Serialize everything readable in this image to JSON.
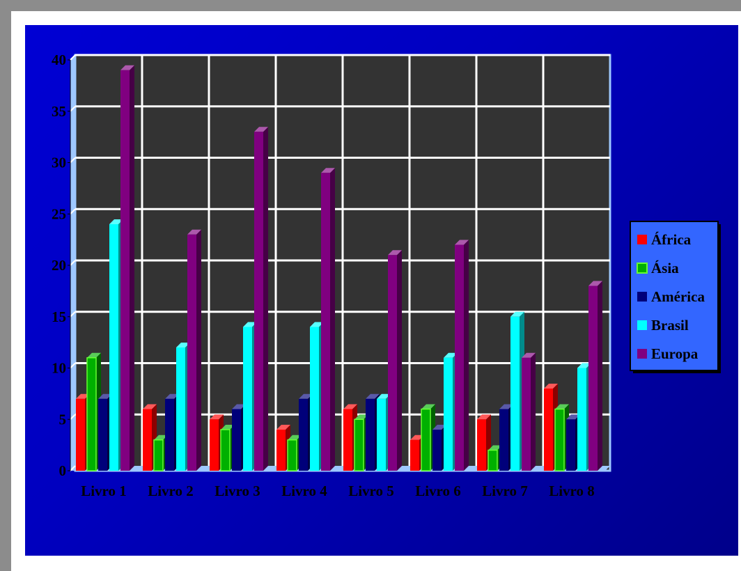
{
  "chart_data": {
    "type": "bar",
    "title": "",
    "xlabel": "",
    "ylabel": "",
    "ylim": [
      0,
      40
    ],
    "yticks": [
      0,
      5,
      10,
      15,
      20,
      25,
      30,
      35,
      40
    ],
    "grid": true,
    "legend_position": "right",
    "categories": [
      "Livro 1",
      "Livro 2",
      "Livro 3",
      "Livro 4",
      "Livro 5",
      "Livro 6",
      "Livro 7",
      "Livro 8"
    ],
    "series": [
      {
        "name": "África",
        "color": "#ff0000",
        "values": [
          7,
          6,
          5,
          4,
          6,
          3,
          5,
          8
        ]
      },
      {
        "name": "Ásia",
        "color": "#00b000",
        "values": [
          11,
          3,
          4,
          3,
          5,
          6,
          2,
          6
        ]
      },
      {
        "name": "América",
        "color": "#00007a",
        "values": [
          7,
          7,
          6,
          7,
          7,
          4,
          6,
          5
        ]
      },
      {
        "name": "Brasil",
        "color": "#00ffff",
        "values": [
          24,
          12,
          14,
          14,
          7,
          11,
          15,
          10
        ]
      },
      {
        "name": "Europa",
        "color": "#800080",
        "values": [
          39,
          23,
          33,
          29,
          21,
          22,
          11,
          18
        ]
      }
    ]
  }
}
